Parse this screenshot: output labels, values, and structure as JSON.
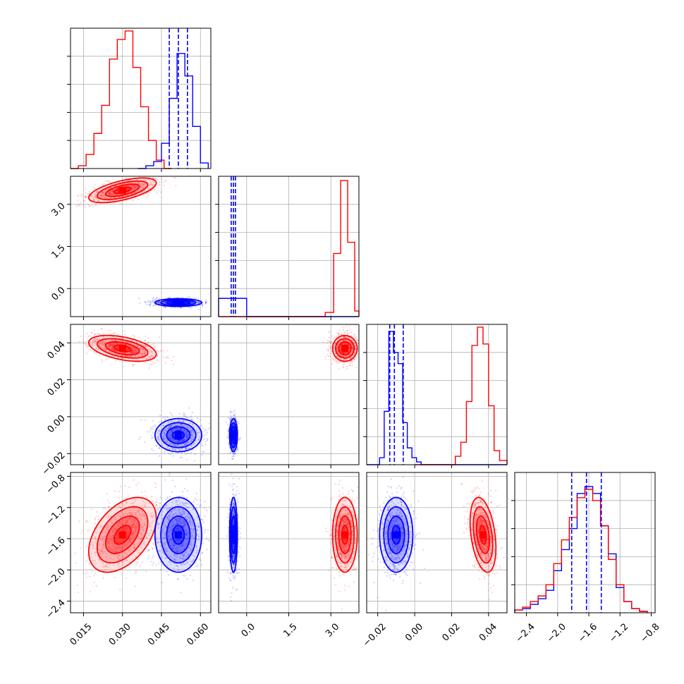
{
  "figure": {
    "type": "corner-plot",
    "colors": {
      "red": "#ff0000",
      "blue": "#0000ff",
      "grid": "#b0b0b0",
      "axis": "#000000"
    }
  },
  "chart_data": {
    "type": "corner",
    "series": [
      {
        "color": "#ff0000"
      },
      {
        "color": "#0000ff"
      }
    ],
    "parameters": [
      {
        "index": 0,
        "range": [
          0.01,
          0.064
        ],
        "ticks": [
          0.015,
          0.03,
          0.045,
          0.06
        ],
        "tick_labels": [
          "0.015",
          "0.030",
          "0.045",
          "0.060"
        ]
      },
      {
        "index": 1,
        "range": [
          -1.0,
          4.0
        ],
        "ticks": [
          0.0,
          1.5,
          3.0
        ],
        "tick_labels": [
          "0.0",
          "1.5",
          "3.0"
        ]
      },
      {
        "index": 2,
        "range": [
          -0.026,
          0.05
        ],
        "ticks": [
          -0.02,
          0.0,
          0.02,
          0.04
        ],
        "tick_labels": [
          "−0.02",
          "0.00",
          "0.02",
          "0.04"
        ]
      },
      {
        "index": 3,
        "range": [
          -2.55,
          -0.75
        ],
        "ticks": [
          -2.4,
          -2.0,
          -1.6,
          -1.2,
          -0.8
        ],
        "tick_labels": [
          "−2.4",
          "−2.0",
          "−1.6",
          "−1.2",
          "−0.8"
        ]
      }
    ],
    "marginals": [
      {
        "param": 0,
        "quantiles_blue": [
          0.048,
          0.0515,
          0.055
        ],
        "series": [
          {
            "color": "#ff0000",
            "edges": [
              0.01,
              0.013,
              0.016,
              0.019,
              0.022,
              0.025,
              0.028,
              0.031,
              0.034,
              0.037,
              0.04,
              0.043,
              0.046,
              0.049
            ],
            "counts": [
              0.0,
              0.02,
              0.1,
              0.25,
              0.45,
              0.78,
              0.92,
              0.98,
              0.72,
              0.44,
              0.2,
              0.06,
              0.0
            ]
          },
          {
            "color": "#0000ff",
            "edges": [
              0.036,
              0.039,
              0.042,
              0.045,
              0.048,
              0.051,
              0.054,
              0.057,
              0.06,
              0.063
            ],
            "counts": [
              0.0,
              0.02,
              0.05,
              0.18,
              0.5,
              0.82,
              0.66,
              0.3,
              0.04
            ]
          }
        ]
      },
      {
        "param": 1,
        "quantiles_blue": [
          -0.55,
          -0.47,
          -0.4
        ],
        "series": [
          {
            "color": "#0000ff",
            "edges": [
              -1.0,
              -0.5,
              0.0,
              3.5,
              4.0
            ],
            "counts": [
              0.13,
              0.13,
              0.0,
              0.0
            ]
          },
          {
            "color": "#ff0000",
            "edges": [
              -1.0,
              2.8,
              3.1,
              3.35,
              3.6,
              3.85,
              4.0
            ],
            "counts": [
              0.0,
              0.03,
              0.45,
              0.97,
              0.53,
              0.04
            ]
          }
        ]
      },
      {
        "param": 2,
        "quantiles_blue": [
          -0.0135,
          -0.011,
          -0.0062
        ],
        "series": [
          {
            "color": "#0000ff",
            "edges": [
              -0.026,
              -0.019,
              -0.0165,
              -0.014,
              -0.0115,
              -0.009,
              -0.0065,
              -0.004,
              -0.0015,
              0.001,
              0.0035,
              0.05
            ],
            "counts": [
              0.0,
              0.05,
              0.38,
              0.95,
              0.8,
              0.72,
              0.3,
              0.12,
              0.05,
              0.02,
              0.0
            ]
          },
          {
            "color": "#ff0000",
            "edges": [
              0.0,
              0.022,
              0.025,
              0.028,
              0.031,
              0.034,
              0.037,
              0.04,
              0.043,
              0.046,
              0.05
            ],
            "counts": [
              0.0,
              0.06,
              0.16,
              0.45,
              0.85,
              0.98,
              0.86,
              0.42,
              0.1,
              0.03
            ]
          }
        ]
      },
      {
        "param": 3,
        "quantiles_blue": [
          -1.82,
          -1.63,
          -1.44
        ],
        "series": [
          {
            "color": "#0000ff",
            "edges": [
              -2.55,
              -2.45,
              -2.35,
              -2.25,
              -2.15,
              -2.05,
              -1.95,
              -1.85,
              -1.75,
              -1.65,
              -1.55,
              -1.45,
              -1.35,
              -1.25,
              -1.15,
              -1.05,
              -0.95,
              -0.85
            ],
            "counts": [
              0.02,
              0.03,
              0.06,
              0.1,
              0.16,
              0.3,
              0.45,
              0.6,
              0.85,
              0.9,
              0.85,
              0.62,
              0.42,
              0.18,
              0.08,
              0.03,
              0.01
            ]
          },
          {
            "color": "#ff0000",
            "edges": [
              -2.55,
              -2.45,
              -2.35,
              -2.25,
              -2.15,
              -2.05,
              -1.95,
              -1.85,
              -1.75,
              -1.65,
              -1.55,
              -1.45,
              -1.35,
              -1.25,
              -1.15,
              -1.05,
              -0.95,
              -0.85
            ],
            "counts": [
              0.02,
              0.04,
              0.08,
              0.12,
              0.2,
              0.35,
              0.52,
              0.68,
              0.82,
              0.88,
              0.8,
              0.62,
              0.38,
              0.2,
              0.08,
              0.03,
              0.01
            ]
          }
        ]
      }
    ],
    "joint": [
      {
        "px": 0,
        "py": 1,
        "clusters": [
          {
            "color": "#ff0000",
            "mean": [
              0.03,
              3.5
            ],
            "sd": [
              0.0065,
              0.22
            ],
            "rho": 0.6
          },
          {
            "color": "#0000ff",
            "mean": [
              0.0515,
              -0.5
            ],
            "sd": [
              0.0045,
              0.07
            ],
            "rho": 0.0
          }
        ]
      },
      {
        "px": 0,
        "py": 2,
        "clusters": [
          {
            "color": "#ff0000",
            "mean": [
              0.03,
              0.037
            ],
            "sd": [
              0.0065,
              0.0035
            ],
            "rho": -0.45
          },
          {
            "color": "#0000ff",
            "mean": [
              0.0515,
              -0.01
            ],
            "sd": [
              0.0045,
              0.0045
            ],
            "rho": 0.0
          }
        ]
      },
      {
        "px": 1,
        "py": 2,
        "clusters": [
          {
            "color": "#ff0000",
            "mean": [
              3.5,
              0.037
            ],
            "sd": [
              0.22,
              0.0035
            ],
            "rho": 0.0
          },
          {
            "color": "#0000ff",
            "mean": [
              -0.47,
              -0.01
            ],
            "sd": [
              0.07,
              0.0045
            ],
            "rho": 0.0
          }
        ]
      },
      {
        "px": 0,
        "py": 3,
        "clusters": [
          {
            "color": "#ff0000",
            "mean": [
              0.03,
              -1.55
            ],
            "sd": [
              0.0065,
              0.24
            ],
            "rho": 0.45
          },
          {
            "color": "#0000ff",
            "mean": [
              0.0515,
              -1.55
            ],
            "sd": [
              0.0045,
              0.24
            ],
            "rho": 0.0
          }
        ]
      },
      {
        "px": 1,
        "py": 3,
        "clusters": [
          {
            "color": "#ff0000",
            "mean": [
              3.5,
              -1.55
            ],
            "sd": [
              0.22,
              0.24
            ],
            "rho": 0.0
          },
          {
            "color": "#0000ff",
            "mean": [
              -0.47,
              -1.55
            ],
            "sd": [
              0.07,
              0.24
            ],
            "rho": 0.0
          }
        ]
      },
      {
        "px": 2,
        "py": 3,
        "clusters": [
          {
            "color": "#ff0000",
            "mean": [
              0.037,
              -1.55
            ],
            "sd": [
              0.0035,
              0.24
            ],
            "rho": -0.35
          },
          {
            "color": "#0000ff",
            "mean": [
              -0.01,
              -1.55
            ],
            "sd": [
              0.0045,
              0.24
            ],
            "rho": 0.0
          }
        ]
      }
    ],
    "contour_levels_sigma": [
      0.5,
      1.0,
      1.5,
      2.0
    ],
    "grid": true
  }
}
